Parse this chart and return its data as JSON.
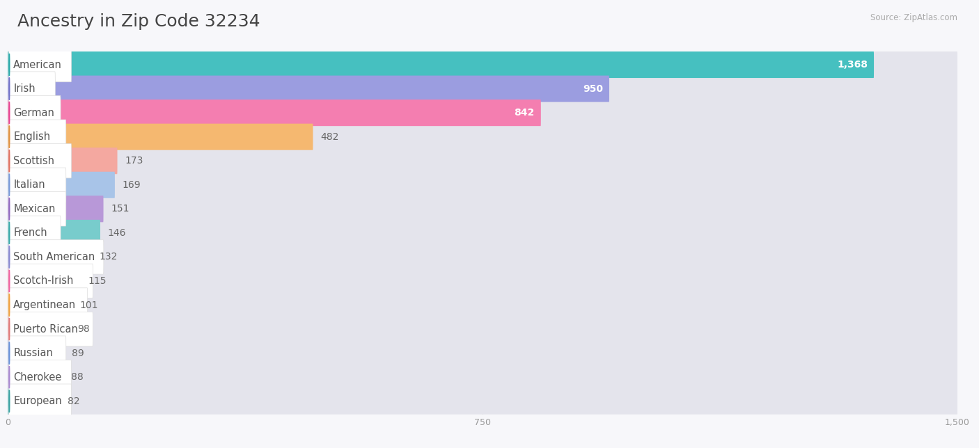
{
  "title": "Ancestry in Zip Code 32234",
  "source": "Source: ZipAtlas.com",
  "categories": [
    "American",
    "Irish",
    "German",
    "English",
    "Scottish",
    "Italian",
    "Mexican",
    "French",
    "South American",
    "Scotch-Irish",
    "Argentinean",
    "Puerto Rican",
    "Russian",
    "Cherokee",
    "European"
  ],
  "values": [
    1368,
    950,
    842,
    482,
    173,
    169,
    151,
    146,
    132,
    115,
    101,
    98,
    89,
    88,
    82
  ],
  "bar_colors": [
    "#46c0c0",
    "#9b9de0",
    "#f47eb0",
    "#f5b870",
    "#f4a8a0",
    "#a8c4e8",
    "#b898d8",
    "#78cccc",
    "#b0b4e8",
    "#f7a8c0",
    "#f9c878",
    "#f4a8a8",
    "#a8bee8",
    "#c8b4e0",
    "#78cccc"
  ],
  "dot_colors": [
    "#28a8a8",
    "#7070c8",
    "#e84090",
    "#e09040",
    "#e07060",
    "#7898d8",
    "#9068c0",
    "#38a8a8",
    "#8888d0",
    "#f060a0",
    "#f0a040",
    "#e07878",
    "#6890d8",
    "#a888d0",
    "#38a0a0"
  ],
  "xlim": [
    0,
    1500
  ],
  "xticks": [
    0,
    750,
    1500
  ],
  "xtick_labels": [
    "0",
    "750",
    "1,500"
  ],
  "background_color": "#f7f7fa",
  "bar_bg_color": "#e4e4ec",
  "row_bg_even": "#f0f0f5",
  "row_bg_odd": "#f7f7fa",
  "title_fontsize": 18,
  "label_fontsize": 10.5,
  "value_fontsize": 10
}
